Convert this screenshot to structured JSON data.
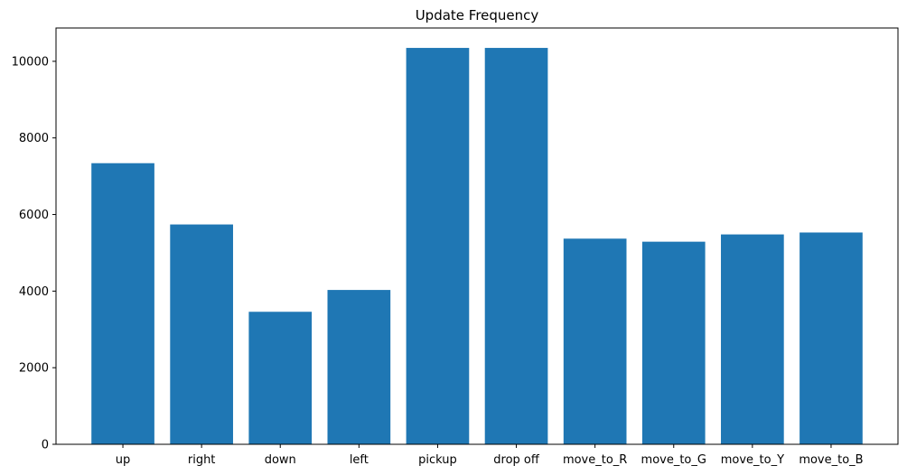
{
  "chart_data": {
    "type": "bar",
    "title": "Update Frequency",
    "xlabel": "",
    "ylabel": "",
    "categories": [
      "up",
      "right",
      "down",
      "left",
      "pickup",
      "drop off",
      "move_to_R",
      "move_to_G",
      "move_to_Y",
      "move_to_B"
    ],
    "values": [
      7340,
      5740,
      3460,
      4030,
      10350,
      10350,
      5370,
      5290,
      5480,
      5530
    ],
    "ylim": [
      0,
      10870
    ],
    "yticks": [
      0,
      2000,
      4000,
      6000,
      8000,
      10000
    ],
    "grid": false,
    "legend": "none",
    "bar_color": "#1f77b4"
  }
}
